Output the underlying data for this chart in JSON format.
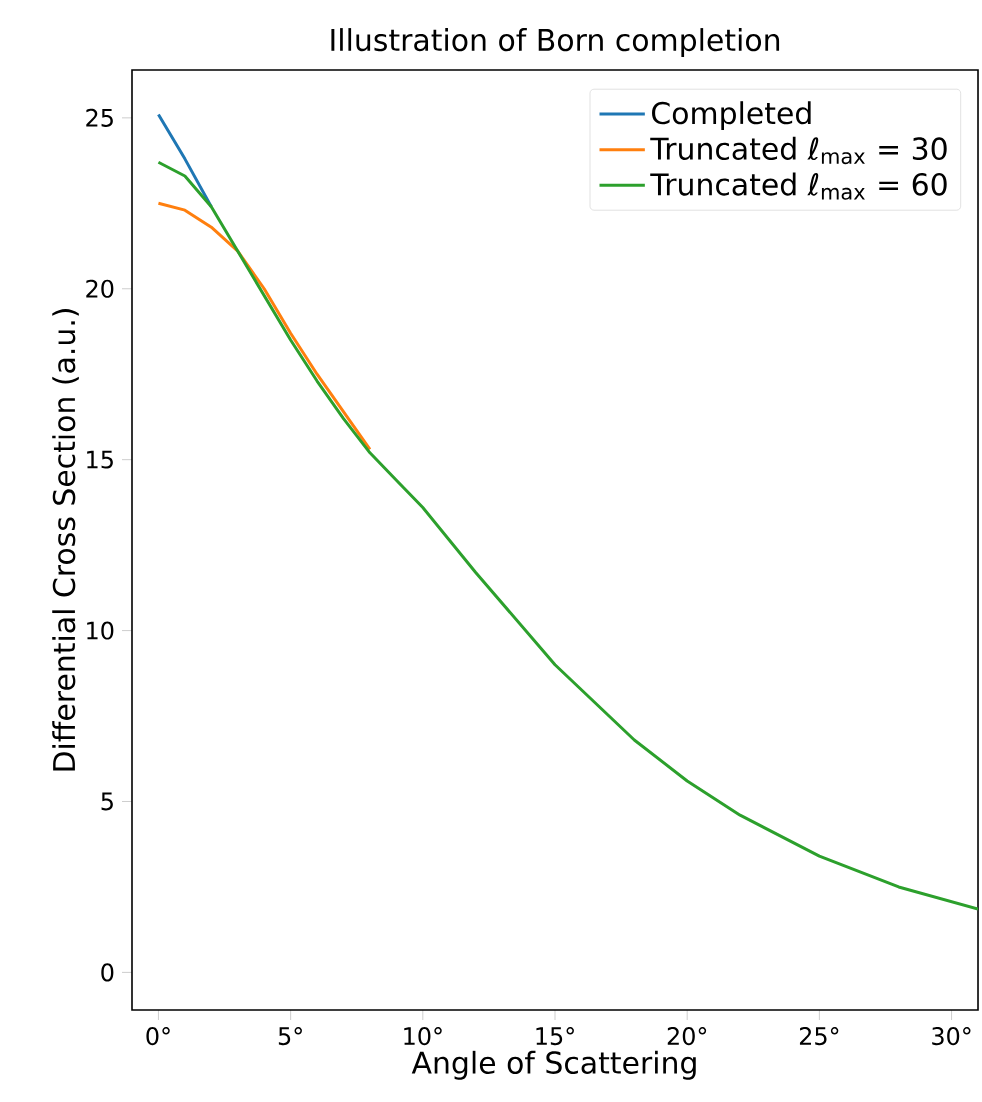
{
  "chart_data": {
    "type": "line",
    "title": "Illustration of Born completion",
    "xlabel": "Angle of Scattering",
    "ylabel": "Differential Cross Section (a.u.)",
    "xlim": [
      -1,
      31
    ],
    "ylim": [
      -1.1,
      26.4
    ],
    "xticks": [
      {
        "value": 0,
        "label": "0°"
      },
      {
        "value": 5,
        "label": "5°"
      },
      {
        "value": 10,
        "label": "10°"
      },
      {
        "value": 15,
        "label": "15°"
      },
      {
        "value": 20,
        "label": "20°"
      },
      {
        "value": 25,
        "label": "25°"
      },
      {
        "value": 30,
        "label": "30°"
      }
    ],
    "yticks": [
      0,
      5,
      10,
      15,
      20,
      25
    ],
    "grid": false,
    "legend": "top right",
    "marker": "none",
    "line_style": "solid",
    "series": [
      {
        "name": "Completed",
        "color": "#1f77b4",
        "x": [
          0,
          1,
          2
        ],
        "values": [
          25.1,
          23.8,
          22.4
        ]
      },
      {
        "name": "Truncated ℓ$_{max}$ = 30",
        "color": "#ff7f0e",
        "x": [
          0,
          1,
          2,
          3,
          4,
          5,
          6,
          7,
          8
        ],
        "values": [
          22.5,
          22.3,
          21.8,
          21.1,
          20.0,
          18.7,
          17.5,
          16.4,
          15.3
        ]
      },
      {
        "name": "Truncated ℓ$_{max}$ = 60",
        "color": "#2ca02c",
        "x": [
          0,
          1,
          2,
          3,
          4,
          5,
          6,
          7,
          8,
          9,
          10,
          12,
          15,
          18,
          20,
          22,
          25,
          28,
          31
        ],
        "values": [
          23.7,
          23.3,
          22.4,
          21.1,
          19.8,
          18.5,
          17.3,
          16.2,
          15.2,
          14.4,
          13.6,
          11.7,
          9.0,
          6.8,
          5.6,
          4.6,
          3.4,
          2.5,
          1.85
        ]
      }
    ]
  }
}
